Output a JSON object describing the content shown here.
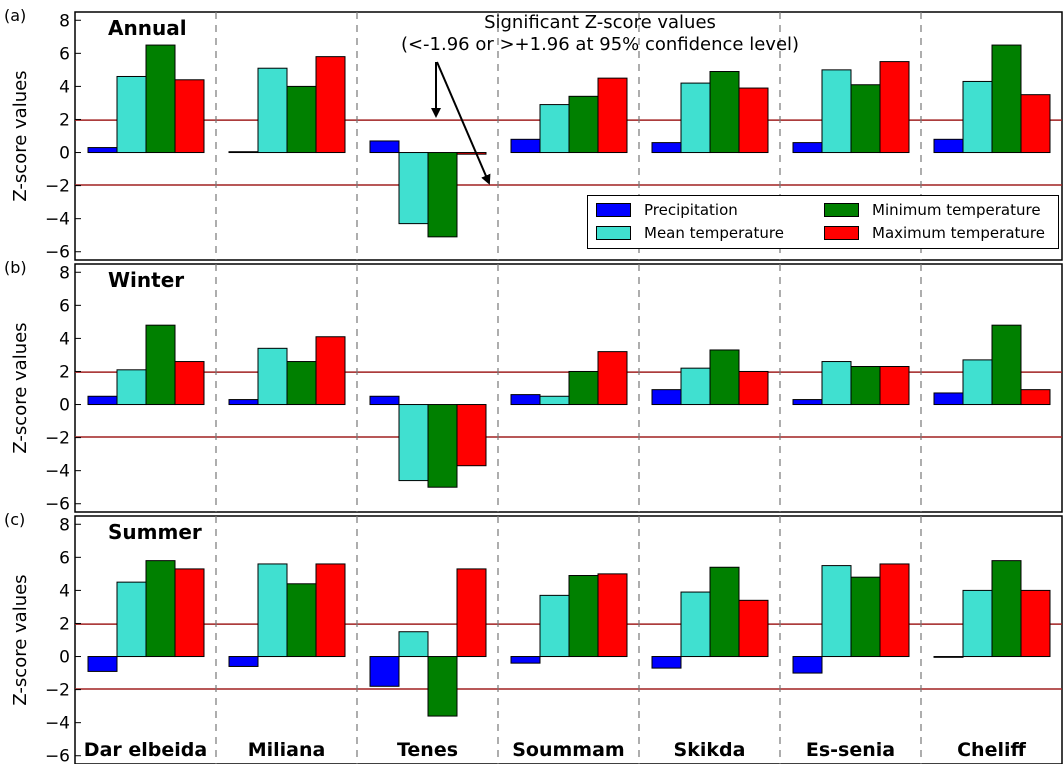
{
  "chart_data": {
    "type": "bar",
    "ylabel": "Z-score values",
    "ylim": [
      -6.5,
      8.5
    ],
    "yticks": [
      "8",
      "6",
      "4",
      "2",
      "0",
      "−2",
      "−4",
      "−6"
    ],
    "significance_lines": [
      1.96,
      -1.96
    ],
    "categories": [
      "Dar elbeida",
      "Miliana",
      "Tenes",
      "Soummam",
      "Skikda",
      "Es-senia",
      "Cheliff"
    ],
    "legend": [
      {
        "name": "Precipitation",
        "color": "#0000ff"
      },
      {
        "name": "Mean temperature",
        "color": "#40e0d0"
      },
      {
        "name": "Minimum temperature",
        "color": "#008000"
      },
      {
        "name": "Maximum temperature",
        "color": "#ff0000"
      }
    ],
    "annotation": {
      "line1": "Significant Z-score values",
      "line2": "(<-1.96 or >+1.96 at 95% confidence level)"
    },
    "panels": [
      {
        "panel_label": "(a)",
        "title": "Annual",
        "series": [
          {
            "name": "Precipitation",
            "values": [
              0.3,
              0.05,
              0.7,
              0.8,
              0.6,
              0.6,
              0.8
            ]
          },
          {
            "name": "Mean temperature",
            "values": [
              4.6,
              5.1,
              -4.3,
              2.9,
              4.2,
              5.0,
              4.3
            ]
          },
          {
            "name": "Minimum temperature",
            "values": [
              6.5,
              4.0,
              -5.1,
              3.4,
              4.9,
              4.1,
              6.5
            ]
          },
          {
            "name": "Maximum temperature",
            "values": [
              4.4,
              5.8,
              -0.1,
              4.5,
              3.9,
              5.5,
              3.5
            ]
          }
        ]
      },
      {
        "panel_label": "(b)",
        "title": "Winter",
        "series": [
          {
            "name": "Precipitation",
            "values": [
              0.5,
              0.3,
              0.5,
              0.6,
              0.9,
              0.3,
              0.7
            ]
          },
          {
            "name": "Mean temperature",
            "values": [
              2.1,
              3.4,
              -4.6,
              0.5,
              2.2,
              2.6,
              2.7
            ]
          },
          {
            "name": "Minimum temperature",
            "values": [
              4.8,
              2.6,
              -5.0,
              2.0,
              3.3,
              2.3,
              4.8
            ]
          },
          {
            "name": "Maximum temperature",
            "values": [
              2.6,
              4.1,
              -3.7,
              3.2,
              2.0,
              2.3,
              0.9
            ]
          }
        ]
      },
      {
        "panel_label": "(c)",
        "title": "Summer",
        "series": [
          {
            "name": "Precipitation",
            "values": [
              -0.9,
              -0.6,
              -1.8,
              -0.4,
              -0.7,
              -1.0,
              0.0
            ]
          },
          {
            "name": "Mean temperature",
            "values": [
              4.5,
              5.6,
              1.5,
              3.7,
              3.9,
              5.5,
              4.0
            ]
          },
          {
            "name": "Minimum temperature",
            "values": [
              5.8,
              4.4,
              -3.6,
              4.9,
              5.4,
              4.8,
              5.8
            ]
          },
          {
            "name": "Maximum temperature",
            "values": [
              5.3,
              5.6,
              5.3,
              5.0,
              3.4,
              5.6,
              4.0
            ]
          }
        ]
      }
    ]
  }
}
